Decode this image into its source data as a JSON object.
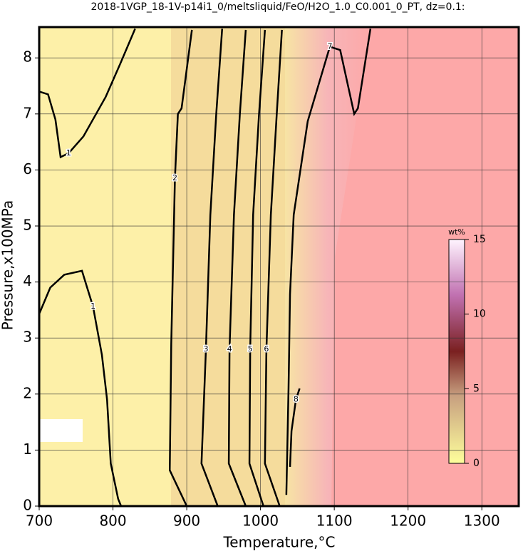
{
  "chart_data": {
    "type": "contour",
    "title": "2018-1VGP_18-1V-p14i1_0/meltsliquid/FeO/H2O_1.0_C0.001_0_PT, dz=0.1:",
    "xlabel": "Temperature,°C",
    "ylabel": "Pressure,x100MPa",
    "xlim": [
      700,
      1350
    ],
    "ylim": [
      0,
      8.55
    ],
    "xticks": [
      700,
      800,
      900,
      1000,
      1100,
      1200,
      1300
    ],
    "yticks": [
      0,
      1,
      2,
      3,
      4,
      5,
      6,
      7,
      8
    ],
    "grid": true,
    "contours": [
      {
        "level": 1,
        "x": [
          700,
          712,
          722,
          729,
          740,
          760,
          790,
          810,
          830
        ],
        "y": [
          7.4,
          7.35,
          6.9,
          6.23,
          6.3,
          6.6,
          7.3,
          7.9,
          8.52
        ]
      },
      {
        "level": 1,
        "x": [
          700,
          715,
          734,
          758,
          765,
          773,
          785,
          792,
          797,
          807,
          811
        ],
        "y": [
          3.43,
          3.9,
          4.13,
          4.2,
          3.9,
          3.56,
          2.7,
          1.9,
          0.76,
          0.13,
          0
        ]
      },
      {
        "level": 2,
        "x": [
          907,
          893,
          888,
          884,
          879,
          877,
          900
        ],
        "y": [
          8.5,
          7.1,
          7.0,
          5.85,
          2.9,
          0.64,
          0
        ]
      },
      {
        "level": 3,
        "x": [
          948,
          940,
          932,
          926,
          920,
          942
        ],
        "y": [
          8.52,
          7.0,
          5.2,
          2.8,
          0.76,
          0
        ]
      },
      {
        "level": 4,
        "x": [
          980,
          972,
          964,
          958,
          957,
          980
        ],
        "y": [
          8.5,
          7.0,
          5.2,
          2.8,
          0.76,
          0
        ]
      },
      {
        "level": 5,
        "x": [
          1006,
          998,
          990,
          986,
          985,
          1004
        ],
        "y": [
          8.5,
          7.0,
          5.2,
          2.8,
          0.76,
          0
        ]
      },
      {
        "level": 6,
        "x": [
          1029,
          1022,
          1014,
          1008,
          1006,
          1026
        ],
        "y": [
          8.5,
          7.0,
          5.2,
          2.8,
          0.76,
          0
        ]
      },
      {
        "level": 7,
        "x": [
          1035,
          1038,
          1040,
          1045,
          1064,
          1094,
          1108,
          1127,
          1132,
          1149
        ],
        "y": [
          0.2,
          2.1,
          3.78,
          5.2,
          6.87,
          8.2,
          8.14,
          7.0,
          7.1,
          8.52
        ]
      },
      {
        "level": 8,
        "x": [
          1040,
          1042,
          1048,
          1053
        ],
        "y": [
          0.7,
          1.34,
          1.9,
          2.1
        ]
      }
    ],
    "colorbar": {
      "label": "wt%",
      "lim": [
        0,
        15
      ],
      "ticks": [
        0,
        5,
        10,
        15
      ]
    }
  }
}
